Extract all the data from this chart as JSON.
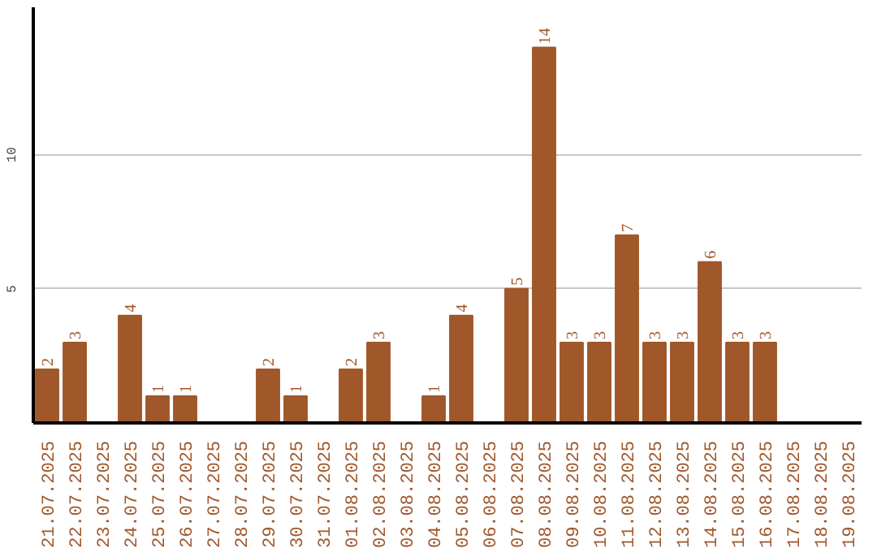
{
  "chart_data": {
    "type": "bar",
    "categories": [
      "21.07.2025",
      "22.07.2025",
      "23.07.2025",
      "24.07.2025",
      "25.07.2025",
      "26.07.2025",
      "27.07.2025",
      "28.07.2025",
      "29.07.2025",
      "30.07.2025",
      "31.07.2025",
      "01.08.2025",
      "02.08.2025",
      "03.08.2025",
      "04.08.2025",
      "05.08.2025",
      "06.08.2025",
      "07.08.2025",
      "08.08.2025",
      "09.08.2025",
      "10.08.2025",
      "11.08.2025",
      "12.08.2025",
      "13.08.2025",
      "14.08.2025",
      "15.08.2025",
      "16.08.2025",
      "17.08.2025",
      "18.08.2025",
      "19.08.2025"
    ],
    "values": [
      2,
      3,
      0,
      4,
      1,
      1,
      0,
      0,
      2,
      1,
      0,
      2,
      3,
      0,
      1,
      4,
      0,
      5,
      14,
      3,
      3,
      7,
      3,
      3,
      6,
      3,
      3,
      0,
      0,
      0
    ],
    "value_labels": [
      "2",
      "3",
      null,
      "4",
      "1",
      "1",
      null,
      null,
      "2",
      "1",
      null,
      "2",
      "3",
      null,
      "1",
      "4",
      null,
      "5",
      "14",
      "3",
      "3",
      "7",
      "3",
      "3",
      "6",
      "3",
      "3",
      null,
      null,
      null
    ],
    "color": "#a0572a",
    "ylim": [
      0,
      15.5
    ],
    "yticks": [
      5,
      10
    ],
    "grid": "y"
  }
}
